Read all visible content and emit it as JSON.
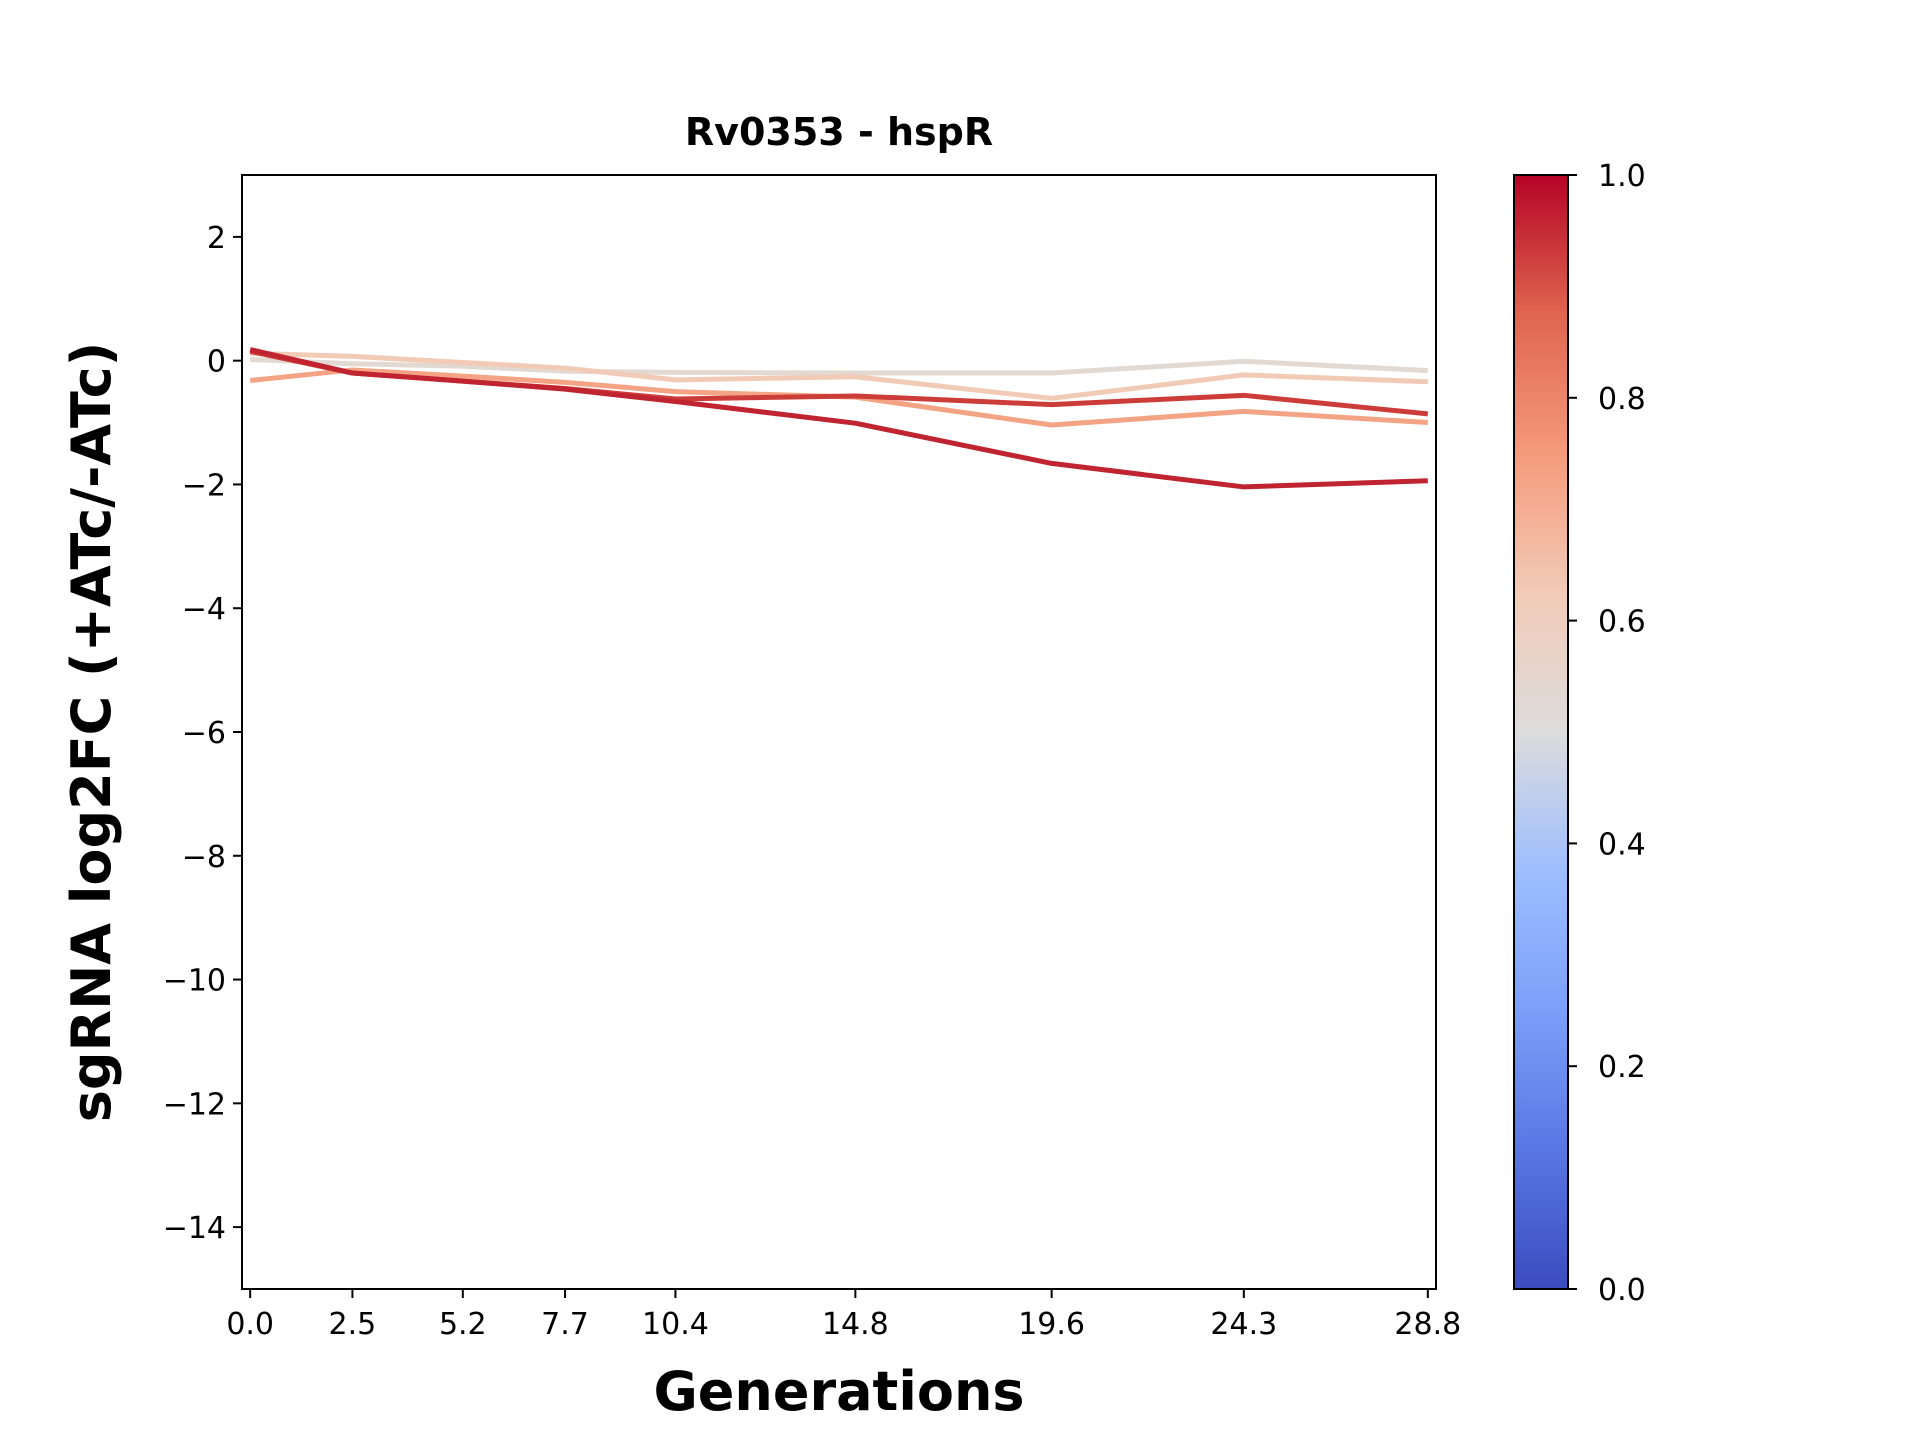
{
  "chart_data": {
    "type": "line",
    "title": "Rv0353 - hspR",
    "xlabel": "Generations",
    "ylabel": "sgRNA log2FC (+ATc/-ATc)",
    "x": [
      0.0,
      2.5,
      5.2,
      7.7,
      10.4,
      14.8,
      19.6,
      24.3,
      28.8
    ],
    "x_tick_labels": [
      "0.0",
      "2.5",
      "5.2",
      "7.7",
      "10.4",
      "14.8",
      "19.6",
      "24.3",
      "28.8"
    ],
    "xlim": [
      -0.2,
      29.0
    ],
    "ylim": [
      -15,
      3
    ],
    "y_ticks": [
      2,
      0,
      -2,
      -4,
      -6,
      -8,
      -10,
      -12,
      -14
    ],
    "grid": false,
    "colormap": "coolwarm",
    "colorbar": {
      "range": [
        0,
        1
      ],
      "ticks": [
        "0.0",
        "0.2",
        "0.4",
        "0.6",
        "0.8",
        "1.0"
      ]
    },
    "series": [
      {
        "color_value": 0.55,
        "color": "#e3d9d3",
        "values": [
          0.02,
          -0.05,
          -0.09,
          -0.17,
          -0.19,
          -0.2,
          -0.2,
          -0.01,
          -0.16
        ]
      },
      {
        "color_value": 0.62,
        "color": "#f2cbb7",
        "values": [
          0.12,
          0.07,
          -0.03,
          -0.12,
          -0.31,
          -0.26,
          -0.61,
          -0.23,
          -0.34
        ]
      },
      {
        "color_value": 0.72,
        "color": "#f4a384",
        "values": [
          -0.32,
          -0.15,
          -0.25,
          -0.35,
          -0.5,
          -0.59,
          -1.04,
          -0.82,
          -1.0
        ]
      },
      {
        "color_value": 0.9,
        "color": "#cc3d3a",
        "values": [
          0.15,
          -0.2,
          -0.33,
          -0.45,
          -0.62,
          -0.57,
          -0.71,
          -0.56,
          -0.86
        ]
      },
      {
        "color_value": 0.95,
        "color": "#bf2430",
        "values": [
          0.18,
          -0.2,
          -0.33,
          -0.46,
          -0.66,
          -1.01,
          -1.66,
          -2.04,
          -1.94
        ]
      }
    ]
  }
}
